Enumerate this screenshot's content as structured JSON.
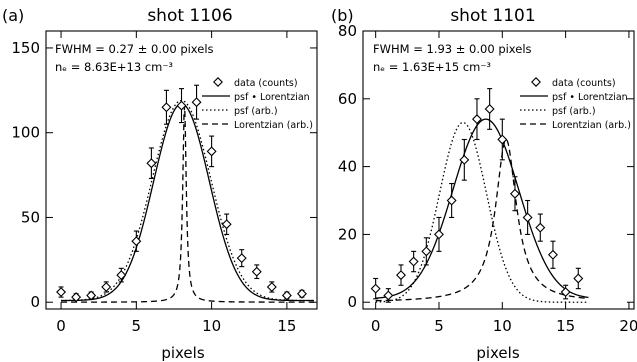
{
  "chart_data": [
    {
      "type": "scatter",
      "panel_label": "(a)",
      "title": "shot 1106",
      "xlabel": "pixels",
      "ylabel": "",
      "xlim": [
        -1,
        17
      ],
      "ylim": [
        -4,
        160
      ],
      "xticks": [
        0,
        5,
        10,
        15
      ],
      "yticks": [
        0,
        50,
        100,
        150
      ],
      "legend_placement": "top-right",
      "annotation_lines": [
        "FWHM = 0.27 ± 0.00 pixels",
        "nₑ = 8.63E+13 cm⁻³"
      ],
      "legend": [
        "data (counts)",
        "psf • Lorentzian",
        "psf (arb.)",
        "Lorentzian (arb.)"
      ],
      "series": [
        {
          "name": "data (counts)",
          "kind": "points",
          "x": [
            0,
            1,
            2,
            3,
            4,
            5,
            6,
            7,
            8,
            9,
            10,
            11,
            12,
            13,
            14,
            15,
            16
          ],
          "y": [
            6,
            3,
            4,
            9,
            16,
            36,
            82,
            115,
            116,
            118,
            89,
            46,
            26,
            18,
            9,
            4,
            5
          ],
          "err": [
            3,
            2,
            2,
            3,
            4,
            6,
            9,
            10,
            10,
            10,
            9,
            6,
            5,
            4,
            3,
            2,
            2
          ]
        },
        {
          "name": "psf • Lorentzian",
          "kind": "gaussian",
          "amp": 116,
          "center": 8.0,
          "sigma": 1.85,
          "base": 1
        },
        {
          "name": "psf (arb.)",
          "kind": "gaussian",
          "amp": 118,
          "center": 8.0,
          "sigma": 1.95,
          "base": 1
        },
        {
          "name": "Lorentzian (arb.)",
          "kind": "lorentzian",
          "amp": 117,
          "center": 8.2,
          "gamma": 0.14,
          "base": 0
        }
      ]
    },
    {
      "type": "scatter",
      "panel_label": "(b)",
      "title": "shot 1101",
      "xlabel": "pixels",
      "ylabel": "",
      "xlim": [
        -1,
        20.4
      ],
      "ylim": [
        -2,
        80
      ],
      "xticks": [
        0,
        5,
        10,
        15,
        20
      ],
      "yticks": [
        0,
        20,
        40,
        60,
        80
      ],
      "legend_placement": "top-right",
      "annotation_lines": [
        "FWHM = 1.93 ± 0.00 pixels",
        "nₑ = 1.63E+15 cm⁻³"
      ],
      "legend": [
        "data (counts)",
        "psf • Lorentzian",
        "psf (arb.)",
        "Lorentzian (arb.)"
      ],
      "series": [
        {
          "name": "data (counts)",
          "kind": "points",
          "x": [
            0,
            1,
            2,
            3,
            4,
            5,
            6,
            7,
            8,
            9,
            10,
            11,
            12,
            13,
            14,
            15,
            16
          ],
          "y": [
            4,
            2,
            8,
            12,
            15,
            20,
            30,
            42,
            54,
            57,
            48,
            32,
            25,
            22,
            14,
            3,
            7
          ],
          "err": [
            3,
            2,
            3,
            3,
            4,
            5,
            5,
            6,
            6,
            6,
            6,
            5,
            5,
            4,
            4,
            2,
            3
          ]
        },
        {
          "name": "psf • Lorentzian",
          "kind": "gaussian",
          "amp": 53,
          "center": 8.7,
          "sigma": 2.6,
          "base": 1
        },
        {
          "name": "psf (arb.)",
          "kind": "gaussian",
          "amp": 53,
          "center": 6.9,
          "sigma": 1.85,
          "base": 0
        },
        {
          "name": "Lorentzian (arb.)",
          "kind": "lorentzian",
          "amp": 48,
          "center": 10.3,
          "gamma": 1.0,
          "base": 0
        }
      ]
    }
  ]
}
